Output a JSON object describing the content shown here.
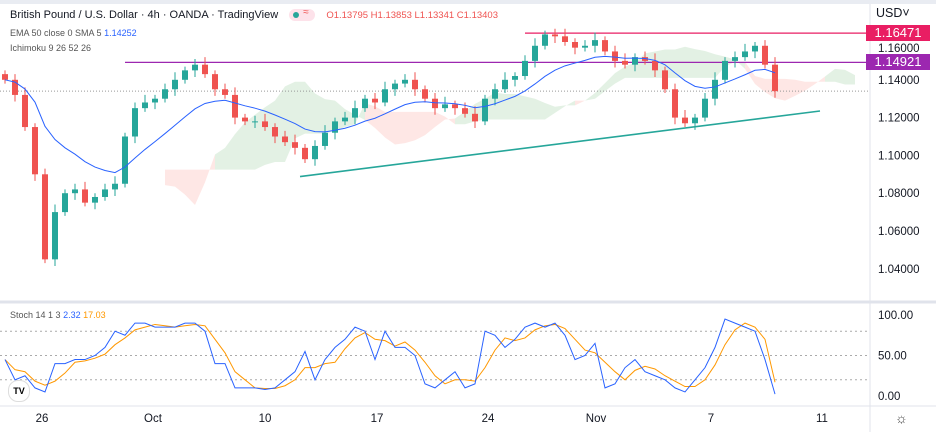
{
  "header": {
    "title": "British Pound / U.S. Dollar · 4h · OANDA · TradingView",
    "ohlc": "O1.13795 H1.13853 L1.13341 C1.13403"
  },
  "indicators": {
    "ema_label": "EMA 50 close 0 SMA 5",
    "ema_value": "1.14252",
    "ichimoku_label": "Ichimoku 9 26 52 26",
    "stoch_label": "Stoch 14 1 3",
    "stoch_k": "2.32",
    "stoch_d": "17.03"
  },
  "axis": {
    "currency": "USD",
    "price_ticks": [
      "1.16000",
      "1.14000",
      "1.12000",
      "1.10000",
      "1.08000",
      "1.06000",
      "1.04000"
    ],
    "stoch_ticks": [
      "100.00",
      "50.00",
      "0.00"
    ],
    "time_labels": [
      "26",
      "Oct",
      "10",
      "17",
      "24",
      "Nov",
      "7",
      "11"
    ]
  },
  "levels": [
    {
      "value": "1.16471",
      "color": "#e91e63"
    },
    {
      "value": "1.14921",
      "color": "#9c27b0"
    }
  ],
  "colors": {
    "up": "#26a69a",
    "down": "#ef5350",
    "ema": "#2962ff",
    "stoch_k": "#2962ff",
    "stoch_d": "#ff9800",
    "trend": "#26a69a"
  },
  "chart_data": [
    {
      "type": "candlestick",
      "title": "British Pound / U.S. Dollar",
      "ylim": [
        1.03,
        1.175
      ],
      "closes": [
        1.14,
        1.132,
        1.115,
        1.09,
        1.045,
        1.07,
        1.08,
        1.082,
        1.075,
        1.078,
        1.082,
        1.085,
        1.11,
        1.125,
        1.128,
        1.13,
        1.135,
        1.14,
        1.145,
        1.148,
        1.143,
        1.135,
        1.132,
        1.12,
        1.118,
        1.118,
        1.115,
        1.11,
        1.107,
        1.104,
        1.098,
        1.105,
        1.112,
        1.118,
        1.12,
        1.125,
        1.13,
        1.128,
        1.135,
        1.138,
        1.14,
        1.135,
        1.13,
        1.125,
        1.127,
        1.125,
        1.122,
        1.118,
        1.13,
        1.135,
        1.14,
        1.142,
        1.15,
        1.158,
        1.164,
        1.163,
        1.16,
        1.157,
        1.158,
        1.161,
        1.155,
        1.15,
        1.148,
        1.152,
        1.15,
        1.145,
        1.135,
        1.12,
        1.117,
        1.12,
        1.13,
        1.14,
        1.15,
        1.152,
        1.155,
        1.158,
        1.148,
        1.134
      ],
      "last_close": 1.13403,
      "trendline": {
        "from": 1.0888,
        "to": 1.1235
      }
    },
    {
      "type": "line",
      "title": "Stoch 14 1 3",
      "ylim": [
        0,
        100
      ],
      "bands": [
        80,
        50,
        20
      ],
      "k": [
        45,
        20,
        25,
        10,
        5,
        40,
        40,
        45,
        45,
        50,
        60,
        80,
        75,
        90,
        90,
        85,
        85,
        85,
        90,
        90,
        80,
        40,
        40,
        10,
        10,
        10,
        8,
        10,
        20,
        30,
        55,
        20,
        45,
        60,
        70,
        85,
        80,
        45,
        80,
        60,
        60,
        50,
        15,
        10,
        20,
        30,
        10,
        15,
        80,
        75,
        60,
        70,
        85,
        90,
        85,
        90,
        75,
        45,
        50,
        65,
        10,
        15,
        35,
        45,
        30,
        25,
        20,
        10,
        5,
        20,
        35,
        60,
        95,
        90,
        85,
        80,
        45,
        2.32
      ]
    }
  ]
}
